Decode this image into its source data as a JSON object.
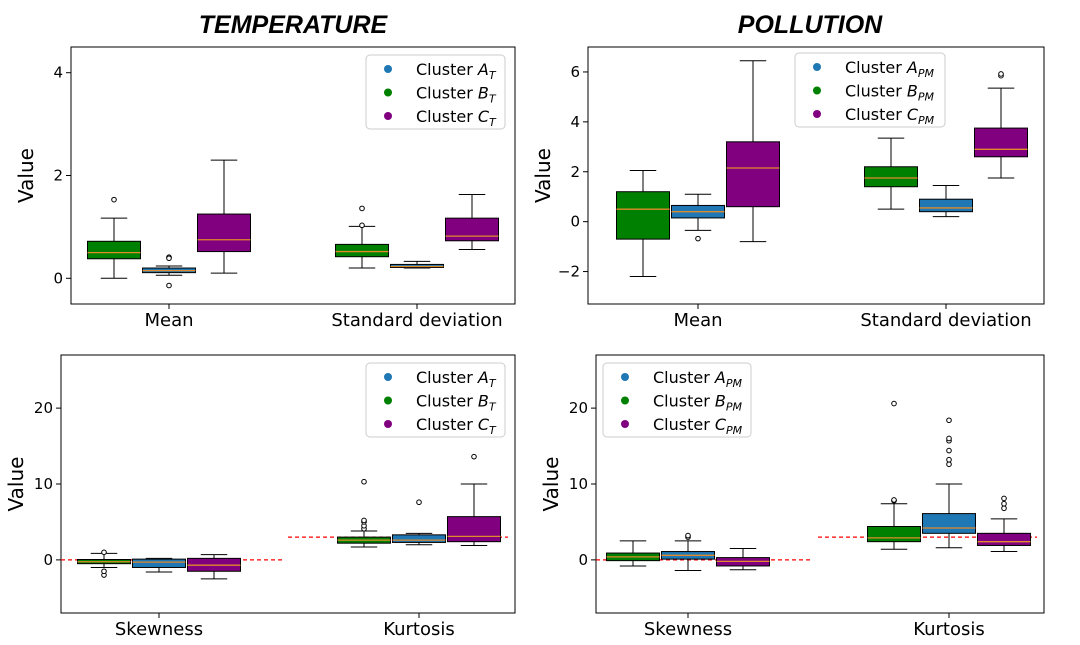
{
  "column_titles": [
    "TEMPERATURE",
    "POLLUTION"
  ],
  "colors": {
    "A": "#1f77b4",
    "B": "#008000",
    "C": "#800080",
    "median": "#e08a2c",
    "reference": "#ff0000"
  },
  "chart_data": [
    {
      "type": "box",
      "ylabel": "Value",
      "ylim": [
        -0.5,
        4.5
      ],
      "yticks": [
        0,
        2,
        4
      ],
      "categories": [
        "Mean",
        "Standard deviation"
      ],
      "legend": {
        "position": "top-right",
        "labels": [
          {
            "name": "Cluster A",
            "sub": "T",
            "series": "A"
          },
          {
            "name": "Cluster B",
            "sub": "T",
            "series": "B"
          },
          {
            "name": "Cluster C",
            "sub": "T",
            "series": "C"
          }
        ]
      },
      "order": [
        "B",
        "A",
        "C"
      ],
      "boxes": {
        "B": [
          {
            "whislo": 0.0,
            "q1": 0.38,
            "med": 0.5,
            "q3": 0.72,
            "whishi": 1.17,
            "fliers": [
              1.53
            ]
          },
          {
            "whislo": 0.2,
            "q1": 0.42,
            "med": 0.52,
            "q3": 0.66,
            "whishi": 1.01,
            "fliers": [
              1.36,
              1.03
            ]
          }
        ],
        "A": [
          {
            "whislo": 0.06,
            "q1": 0.11,
            "med": 0.15,
            "q3": 0.2,
            "whishi": 0.24,
            "fliers": [
              0.41,
              0.39,
              -0.14
            ]
          },
          {
            "whislo": 0.2,
            "q1": 0.21,
            "med": 0.23,
            "q3": 0.27,
            "whishi": 0.33,
            "fliers": []
          }
        ],
        "C": [
          {
            "whislo": 0.1,
            "q1": 0.52,
            "med": 0.75,
            "q3": 1.25,
            "whishi": 2.3,
            "fliers": []
          },
          {
            "whislo": 0.56,
            "q1": 0.73,
            "med": 0.82,
            "q3": 1.17,
            "whishi": 1.63,
            "fliers": []
          }
        ]
      }
    },
    {
      "type": "box",
      "ylabel": "Value",
      "ylim": [
        -3.3,
        7.0
      ],
      "yticks": [
        -2,
        0,
        2,
        4,
        6
      ],
      "categories": [
        "Mean",
        "Standard deviation"
      ],
      "legend": {
        "position": "top-center",
        "labels": [
          {
            "name": "Cluster A",
            "sub": "PM",
            "series": "A"
          },
          {
            "name": "Cluster B",
            "sub": "PM",
            "series": "B"
          },
          {
            "name": "Cluster C",
            "sub": "PM",
            "series": "C"
          }
        ]
      },
      "order": [
        "B",
        "A",
        "C"
      ],
      "boxes": {
        "B": [
          {
            "whislo": -2.2,
            "q1": -0.7,
            "med": 0.5,
            "q3": 1.2,
            "whishi": 2.05,
            "fliers": []
          },
          {
            "whislo": 0.5,
            "q1": 1.4,
            "med": 1.75,
            "q3": 2.2,
            "whishi": 3.35,
            "fliers": []
          }
        ],
        "A": [
          {
            "whislo": -0.35,
            "q1": 0.15,
            "med": 0.4,
            "q3": 0.65,
            "whishi": 1.1,
            "fliers": [
              -0.68
            ]
          },
          {
            "whislo": 0.2,
            "q1": 0.4,
            "med": 0.55,
            "q3": 0.9,
            "whishi": 1.45,
            "fliers": []
          }
        ],
        "C": [
          {
            "whislo": -0.8,
            "q1": 0.6,
            "med": 2.15,
            "q3": 3.2,
            "whishi": 6.45,
            "fliers": []
          },
          {
            "whislo": 1.75,
            "q1": 2.6,
            "med": 2.9,
            "q3": 3.75,
            "whishi": 5.35,
            "fliers": [
              5.85,
              5.92
            ]
          }
        ]
      }
    },
    {
      "type": "box",
      "ylabel": "Value",
      "ylim": [
        -7.0,
        27.0
      ],
      "yticks": [
        0,
        10,
        20
      ],
      "categories": [
        "Skewness",
        "Kurtosis"
      ],
      "legend": {
        "position": "top-right",
        "labels": [
          {
            "name": "Cluster A",
            "sub": "T",
            "series": "A"
          },
          {
            "name": "Cluster B",
            "sub": "T",
            "series": "B"
          },
          {
            "name": "Cluster C",
            "sub": "T",
            "series": "C"
          }
        ]
      },
      "order": [
        "B",
        "A",
        "C"
      ],
      "reference_line": 3,
      "reference_zero": 0,
      "boxes": {
        "B": [
          {
            "whislo": -1.0,
            "q1": -0.5,
            "med": -0.25,
            "q3": 0.05,
            "whishi": 0.85,
            "fliers": [
              -2.0,
              -1.5,
              1.0
            ]
          },
          {
            "whislo": 1.7,
            "q1": 2.2,
            "med": 2.6,
            "q3": 3.0,
            "whishi": 3.8,
            "fliers": [
              4.1,
              4.5,
              5.0,
              5.2,
              10.3
            ]
          }
        ],
        "A": [
          {
            "whislo": -1.6,
            "q1": -1.0,
            "med": -0.3,
            "q3": 0.1,
            "whishi": 0.2,
            "fliers": []
          },
          {
            "whislo": 2.0,
            "q1": 2.3,
            "med": 2.6,
            "q3": 3.3,
            "whishi": 3.5,
            "fliers": [
              7.6
            ]
          }
        ],
        "C": [
          {
            "whislo": -2.5,
            "q1": -1.5,
            "med": -0.7,
            "q3": 0.2,
            "whishi": 0.7,
            "fliers": []
          },
          {
            "whislo": 1.9,
            "q1": 2.4,
            "med": 3.1,
            "q3": 5.7,
            "whishi": 10.0,
            "fliers": [
              13.6
            ]
          }
        ]
      }
    },
    {
      "type": "box",
      "ylabel": "Value",
      "ylim": [
        -7.0,
        27.0
      ],
      "yticks": [
        0,
        10,
        20
      ],
      "categories": [
        "Skewness",
        "Kurtosis"
      ],
      "legend": {
        "position": "top-left",
        "labels": [
          {
            "name": "Cluster A",
            "sub": "PM",
            "series": "A"
          },
          {
            "name": "Cluster B",
            "sub": "PM",
            "series": "B"
          },
          {
            "name": "Cluster C",
            "sub": "PM",
            "series": "C"
          }
        ]
      },
      "order": [
        "B",
        "A",
        "C"
      ],
      "reference_line": 3,
      "reference_zero": 0,
      "boxes": {
        "B": [
          {
            "whislo": -0.8,
            "q1": -0.1,
            "med": 0.4,
            "q3": 0.9,
            "whishi": 2.5,
            "fliers": []
          },
          {
            "whislo": 1.4,
            "q1": 2.4,
            "med": 2.9,
            "q3": 4.4,
            "whishi": 7.4,
            "fliers": [
              7.8,
              7.9,
              20.6
            ]
          }
        ],
        "A": [
          {
            "whislo": -1.4,
            "q1": 0.1,
            "med": 0.6,
            "q3": 1.1,
            "whishi": 2.5,
            "fliers": [
              3.0,
              3.2
            ]
          },
          {
            "whislo": 1.6,
            "q1": 3.5,
            "med": 4.2,
            "q3": 6.1,
            "whishi": 10.0,
            "fliers": [
              12.6,
              13.2,
              14.4,
              15.7,
              16.0,
              18.4
            ]
          }
        ],
        "C": [
          {
            "whislo": -1.3,
            "q1": -0.8,
            "med": -0.2,
            "q3": 0.3,
            "whishi": 1.5,
            "fliers": []
          },
          {
            "whislo": 1.1,
            "q1": 1.9,
            "med": 2.4,
            "q3": 3.5,
            "whishi": 5.4,
            "fliers": [
              6.8,
              7.4,
              8.1
            ]
          }
        ]
      }
    }
  ]
}
